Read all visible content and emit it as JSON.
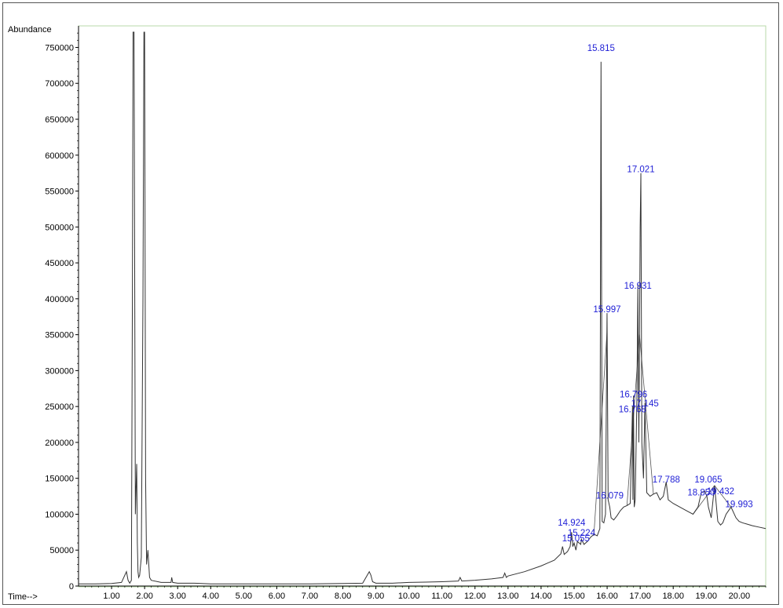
{
  "chart_data": {
    "type": "line",
    "ylabel": "Abundance",
    "xlabel": "Time-->",
    "xlim": [
      0.0,
      20.8
    ],
    "ylim": [
      0,
      780000
    ],
    "x_ticks": [
      "1.00",
      "2.00",
      "3.00",
      "4.00",
      "5.00",
      "6.00",
      "7.00",
      "8.00",
      "9.00",
      "10.00",
      "11.00",
      "12.00",
      "13.00",
      "14.00",
      "15.00",
      "16.00",
      "17.00",
      "18.00",
      "19.00",
      "20.00"
    ],
    "y_ticks": [
      "0",
      "50000",
      "100000",
      "150000",
      "200000",
      "250000",
      "300000",
      "350000",
      "400000",
      "450000",
      "500000",
      "550000",
      "600000",
      "650000",
      "700000",
      "750000"
    ],
    "grid": false,
    "colors": {
      "trace": "#333333",
      "peak_labels": "#1f1fd6",
      "frame": "#b8d9a8"
    },
    "series": [
      {
        "x": [
          0.0,
          0.5,
          1.0,
          1.3,
          1.45,
          1.5,
          1.55,
          1.6,
          1.63,
          1.65,
          1.68,
          1.72,
          1.76,
          1.78,
          1.8,
          1.82,
          1.85,
          1.9,
          1.95,
          1.98,
          2.0,
          2.03,
          2.06,
          2.1,
          2.15,
          2.2,
          2.5,
          2.8,
          2.82,
          2.85,
          3.0,
          3.5,
          4.0,
          5.0,
          6.0,
          7.0,
          8.0,
          8.6,
          8.8,
          8.85,
          8.9,
          9.0,
          9.5,
          10.0,
          10.5,
          11.0,
          11.5,
          11.55,
          11.6,
          12.0,
          12.5,
          12.85,
          12.9,
          12.95,
          13.0,
          13.5,
          14.0,
          14.2,
          14.4,
          14.6,
          14.65,
          14.7,
          14.8,
          14.88,
          14.924,
          14.96,
          15.0,
          15.055,
          15.1,
          15.2,
          15.224,
          15.3,
          15.4,
          15.5,
          15.6,
          15.7,
          15.78,
          15.815,
          15.85,
          15.9,
          15.95,
          15.997,
          16.03,
          16.079,
          16.12,
          16.2,
          16.3,
          16.4,
          16.5,
          16.6,
          16.7,
          16.768,
          16.78,
          16.796,
          16.82,
          16.85,
          16.9,
          16.931,
          16.96,
          17.0,
          17.021,
          17.05,
          17.1,
          17.145,
          17.2,
          17.3,
          17.4,
          17.5,
          17.6,
          17.7,
          17.788,
          17.85,
          18.0,
          18.2,
          18.4,
          18.6,
          18.75,
          18.85,
          18.95,
          19.02,
          19.065,
          19.15,
          19.25,
          19.35,
          19.432,
          19.5,
          19.6,
          19.75,
          19.9,
          19.993,
          20.1,
          20.25,
          20.4,
          20.6,
          20.8
        ],
        "y": [
          3000,
          3000,
          3500,
          5000,
          20000,
          8000,
          4000,
          8000,
          400000,
          780000,
          780000,
          100000,
          170000,
          60000,
          20000,
          12000,
          15000,
          40000,
          400000,
          780000,
          780000,
          150000,
          30000,
          50000,
          12000,
          8000,
          5000,
          5000,
          12000,
          5000,
          4000,
          4000,
          3000,
          3000,
          3000,
          3000,
          3500,
          4000,
          20000,
          15000,
          6000,
          4000,
          4000,
          5000,
          5500,
          6000,
          7000,
          12000,
          7000,
          8000,
          10000,
          12000,
          18000,
          12000,
          14000,
          20000,
          28000,
          32000,
          36000,
          45000,
          55000,
          44000,
          48000,
          55000,
          75000,
          55000,
          60000,
          50000,
          62000,
          58000,
          65000,
          58000,
          62000,
          68000,
          72000,
          70000,
          80000,
          730000,
          90000,
          88000,
          100000,
          380000,
          120000,
          110000,
          95000,
          92000,
          98000,
          105000,
          110000,
          112000,
          115000,
          250000,
          120000,
          265000,
          110000,
          120000,
          260000,
          420000,
          200000,
          500000,
          575000,
          200000,
          150000,
          255000,
          130000,
          125000,
          128000,
          130000,
          120000,
          125000,
          145000,
          120000,
          115000,
          110000,
          105000,
          100000,
          110000,
          130000,
          132000,
          125000,
          110000,
          95000,
          140000,
          90000,
          85000,
          88000,
          100000,
          110000,
          95000,
          90000,
          88000,
          86000,
          84000,
          82000,
          80000
        ]
      }
    ],
    "peak_labels": [
      {
        "x": 15.815,
        "y": 745000,
        "text": "15.815"
      },
      {
        "x": 17.021,
        "y": 576000,
        "text": "17.021"
      },
      {
        "x": 16.931,
        "y": 414000,
        "text": "16.931"
      },
      {
        "x": 15.997,
        "y": 381000,
        "text": "15.997"
      },
      {
        "x": 16.796,
        "y": 263000,
        "text": "16.796"
      },
      {
        "x": 17.145,
        "y": 250000,
        "text": "17.145"
      },
      {
        "x": 16.768,
        "y": 242000,
        "text": "16.768"
      },
      {
        "x": 17.788,
        "y": 144000,
        "text": "17.788"
      },
      {
        "x": 19.065,
        "y": 144000,
        "text": "19.065"
      },
      {
        "x": 18.85,
        "y": 126000,
        "text": "18.850"
      },
      {
        "x": 19.432,
        "y": 128000,
        "text": "19.432"
      },
      {
        "x": 16.079,
        "y": 122000,
        "text": "16.079"
      },
      {
        "x": 19.993,
        "y": 110000,
        "text": "19.993"
      },
      {
        "x": 14.924,
        "y": 84000,
        "text": "14.924"
      },
      {
        "x": 15.224,
        "y": 70000,
        "text": "15.224"
      },
      {
        "x": 15.055,
        "y": 62000,
        "text": "15.055"
      }
    ]
  }
}
